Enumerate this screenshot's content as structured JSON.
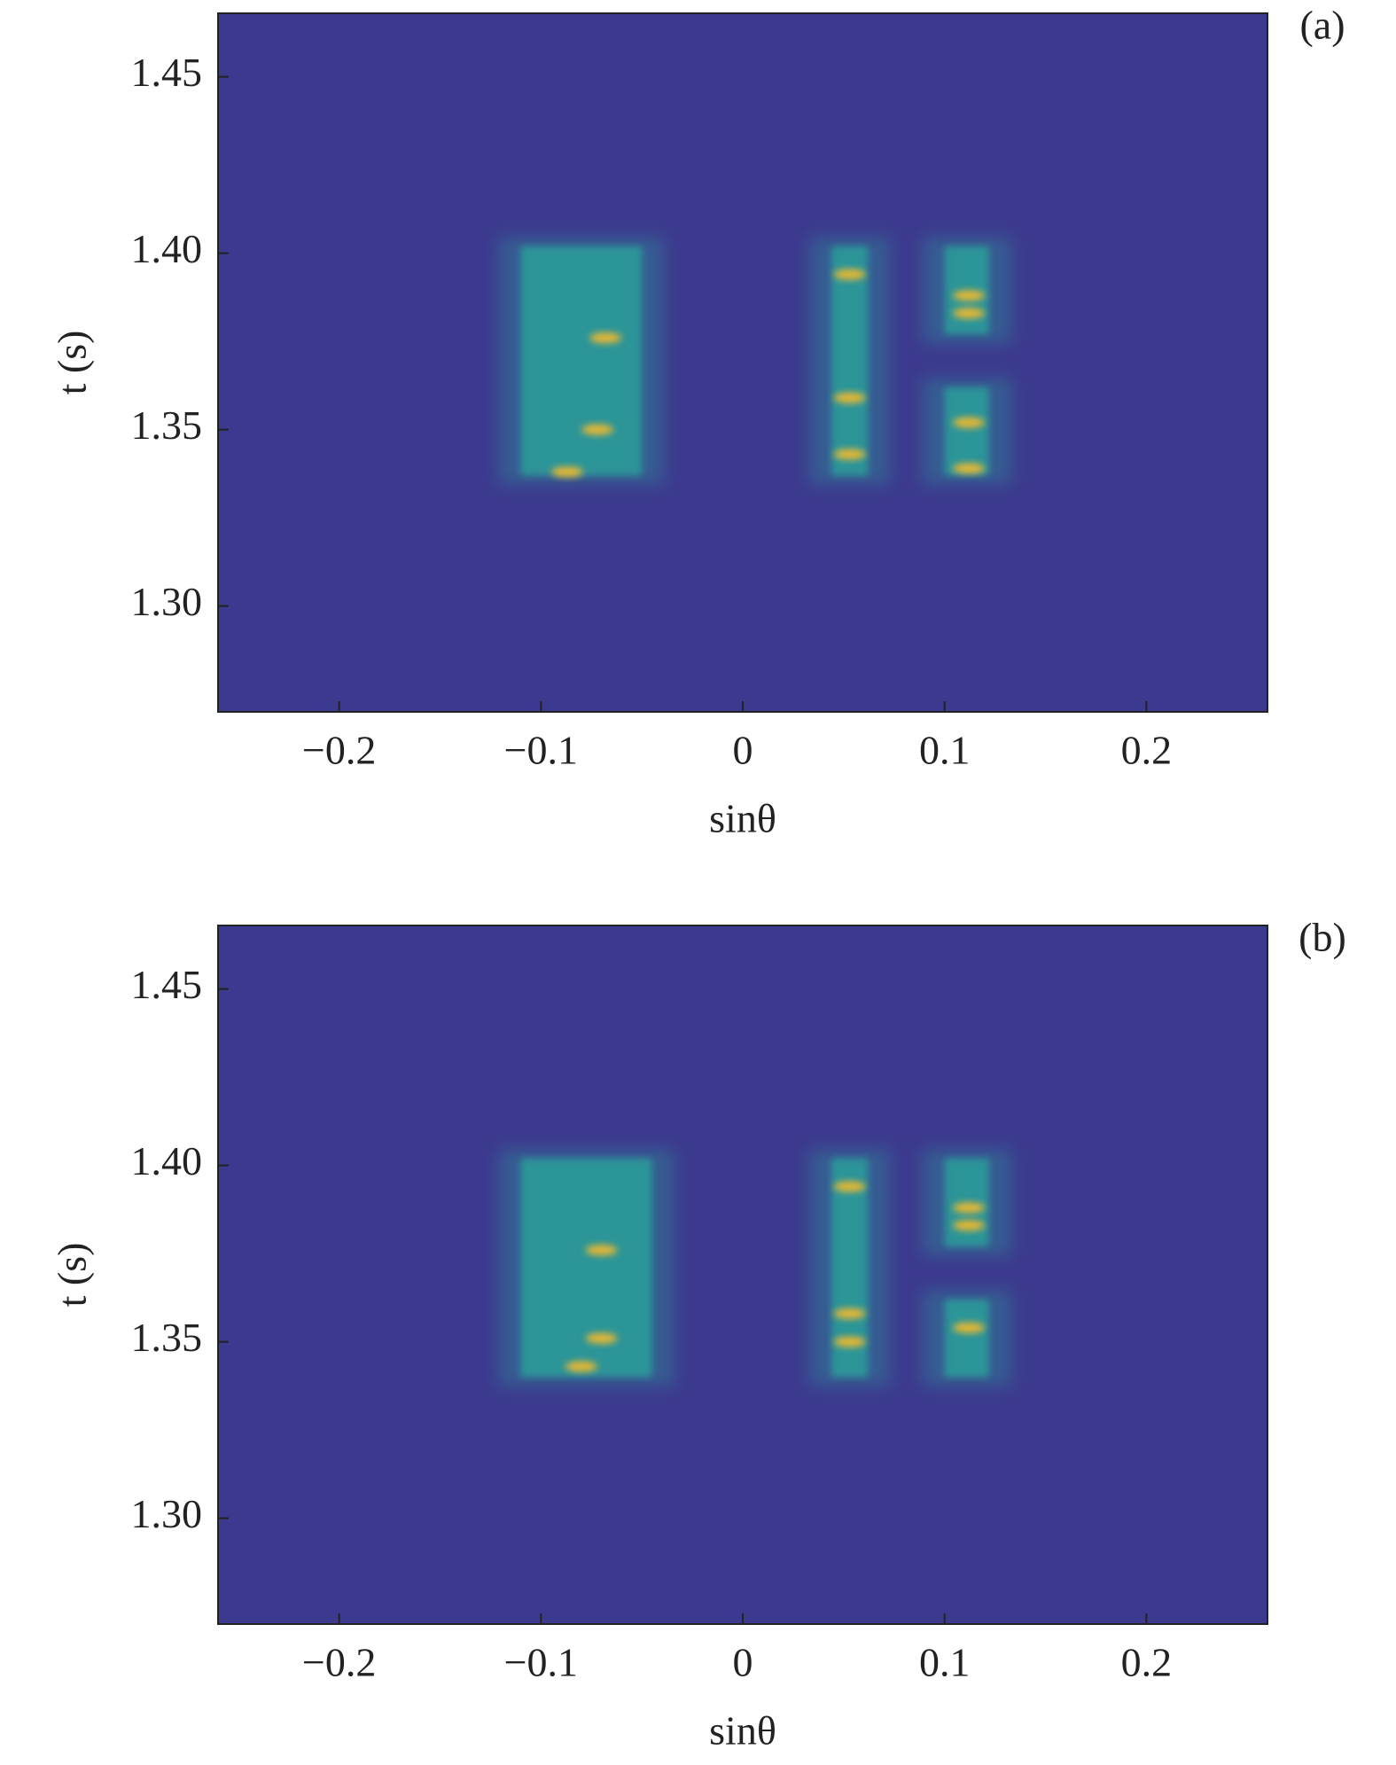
{
  "chart_data": [
    {
      "type": "heatmap",
      "label": "(a)",
      "xlabel": "sinθ",
      "ylabel": "t (s)",
      "xlim": [
        -0.26,
        0.26
      ],
      "ylim": [
        1.27,
        1.468
      ],
      "xticks": [
        {
          "value": -0.2,
          "label": "−0.2"
        },
        {
          "value": -0.1,
          "label": "−0.1"
        },
        0,
        0.1,
        0.2
      ],
      "yticks": [
        1.45,
        {
          "value": 1.4,
          "label": "1.40"
        },
        1.35,
        {
          "value": 1.3,
          "label": "1.30"
        }
      ],
      "background": "#3c3a8e",
      "region_color": "#2a9f9a",
      "hot_color": "#e8b830",
      "regions": [
        {
          "x": [
            -0.11,
            -0.05
          ],
          "y": [
            1.337,
            1.402
          ]
        },
        {
          "x": [
            0.044,
            0.062
          ],
          "y": [
            1.337,
            1.402
          ]
        },
        {
          "x": [
            0.1,
            0.122
          ],
          "y": [
            1.377,
            1.402
          ]
        },
        {
          "x": [
            0.1,
            0.122
          ],
          "y": [
            1.337,
            1.362
          ]
        }
      ],
      "hotspots": {
        "x": [
          -0.068,
          -0.072,
          -0.087,
          0.053,
          0.053,
          0.053,
          0.112,
          0.112,
          0.112,
          0.112
        ],
        "y": [
          1.376,
          1.35,
          1.338,
          1.394,
          1.359,
          1.343,
          1.388,
          1.383,
          1.352,
          1.339
        ]
      }
    },
    {
      "type": "heatmap",
      "label": "(b)",
      "xlabel": "sinθ",
      "ylabel": "t (s)",
      "xlim": [
        -0.26,
        0.26
      ],
      "ylim": [
        1.27,
        1.468
      ],
      "xticks": [
        {
          "value": -0.2,
          "label": "−0.2"
        },
        {
          "value": -0.1,
          "label": "−0.1"
        },
        0,
        0.1,
        0.2
      ],
      "yticks": [
        1.45,
        {
          "value": 1.4,
          "label": "1.40"
        },
        1.35,
        {
          "value": 1.3,
          "label": "1.30"
        }
      ],
      "background": "#3c3a8e",
      "region_color": "#2a9f9a",
      "hot_color": "#e8b830",
      "regions": [
        {
          "x": [
            -0.11,
            -0.045
          ],
          "y": [
            1.34,
            1.402
          ]
        },
        {
          "x": [
            0.044,
            0.062
          ],
          "y": [
            1.34,
            1.402
          ]
        },
        {
          "x": [
            0.1,
            0.122
          ],
          "y": [
            1.377,
            1.402
          ]
        },
        {
          "x": [
            0.1,
            0.122
          ],
          "y": [
            1.34,
            1.362
          ]
        }
      ],
      "hotspots": {
        "x": [
          -0.07,
          -0.07,
          -0.08,
          0.053,
          0.053,
          0.053,
          0.112,
          0.112,
          0.112
        ],
        "y": [
          1.376,
          1.351,
          1.343,
          1.394,
          1.358,
          1.35,
          1.388,
          1.383,
          1.354
        ]
      }
    }
  ]
}
